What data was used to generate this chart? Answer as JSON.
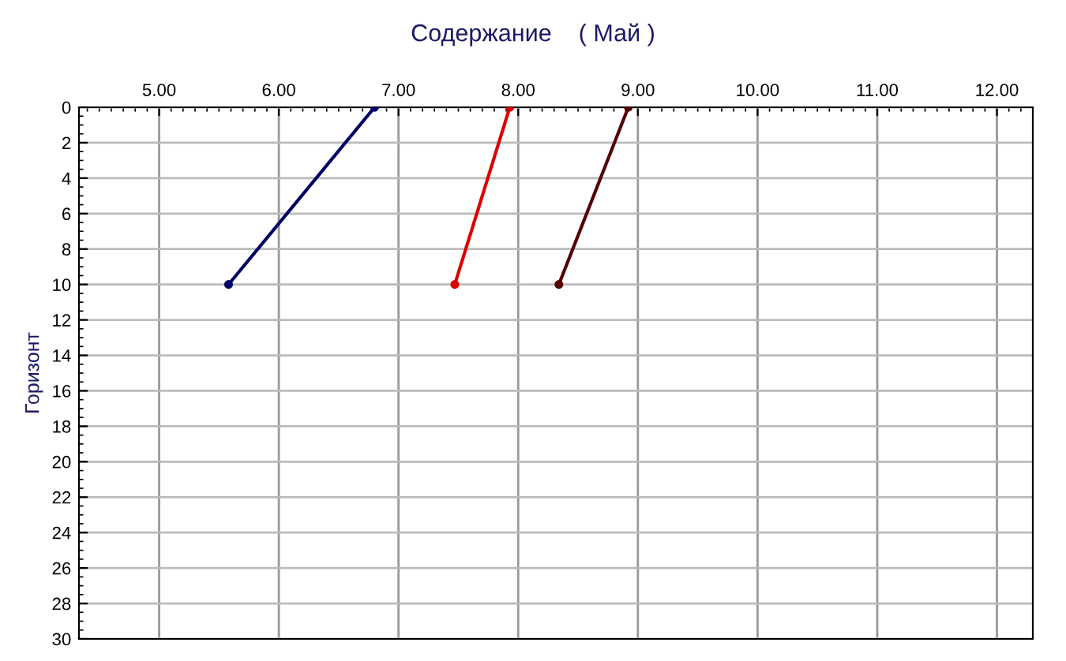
{
  "chart_data": {
    "type": "line",
    "title": "Содержание    ( Май )",
    "ylabel": "Горизонт",
    "xlim": [
      4.33,
      12.3
    ],
    "xticks": [
      {
        "value": 5,
        "label": "5.00"
      },
      {
        "value": 6,
        "label": "6.00"
      },
      {
        "value": 7,
        "label": "7.00"
      },
      {
        "value": 8,
        "label": "8.00"
      },
      {
        "value": 9,
        "label": "9.00"
      },
      {
        "value": 10,
        "label": "10.00"
      },
      {
        "value": 11,
        "label": "11.00"
      },
      {
        "value": 12,
        "label": "12.00"
      }
    ],
    "ylim": [
      30,
      0
    ],
    "yticks": [
      0,
      2,
      4,
      6,
      8,
      10,
      12,
      14,
      16,
      18,
      20,
      22,
      24,
      26,
      28,
      30
    ],
    "grid": true,
    "marker": "circle",
    "line_style": "solid",
    "series": [
      {
        "color": "#000066",
        "x": [
          6.8,
          5.58
        ],
        "values": [
          0,
          10
        ]
      },
      {
        "color": "#dd0000",
        "x": [
          7.93,
          7.47
        ],
        "values": [
          0,
          10
        ]
      },
      {
        "color": "#550000",
        "x": [
          8.92,
          8.34
        ],
        "values": [
          0,
          10
        ]
      }
    ]
  }
}
